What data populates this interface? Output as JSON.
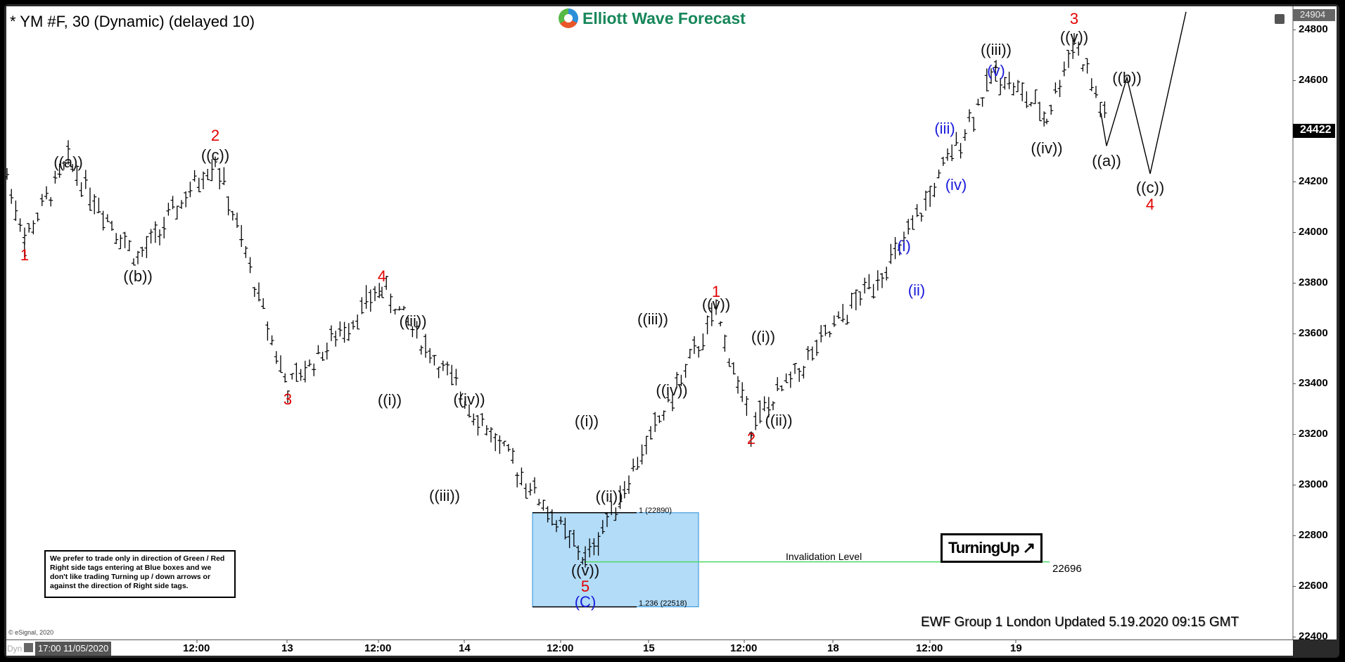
{
  "header": {
    "title": "* YM #F, 30 (Dynamic) (delayed 10)",
    "brand": "Elliott Wave Forecast"
  },
  "price_axis": {
    "high_tag": "24904",
    "last_price_tag": "24422",
    "ticks": [
      "24800",
      "24600",
      "24400",
      "24200",
      "24000",
      "23800",
      "23600",
      "23400",
      "23200",
      "23000",
      "22800",
      "22600",
      "22400"
    ]
  },
  "time_axis": {
    "mode_label": "Dyn",
    "start_label": "17:00 11/05/2020",
    "ticks": [
      "12:00",
      "13",
      "12:00",
      "14",
      "12:00",
      "15",
      "12:00",
      "18",
      "12:00",
      "19"
    ]
  },
  "copyright": "© eSignal, 2020",
  "disclaimer": "We prefer to trade only in direction of Green / Red Right side tags entering at Blue boxes and we don't like trading Turning up / down arrows or against the direction of Right side tags.",
  "blue_box": {
    "upper_label": "1 (22890)",
    "lower_label": "1.236 (22518)"
  },
  "invalidation": {
    "label": "Invalidation Level",
    "value": "22696"
  },
  "turning_badge": "TurningUp ↗",
  "footer": "EWF Group 1 London Updated 5.19.2020 09:15 GMT",
  "chart_data": {
    "type": "ohlc",
    "title": "* YM #F, 30 (Dynamic) (delayed 10)",
    "xlabel": "",
    "ylabel": "Price",
    "ylim": [
      22400,
      24904
    ],
    "grid": false,
    "x_ticks": [
      "12:00 (11/12)",
      "13",
      "12:00",
      "14",
      "12:00",
      "15",
      "12:00",
      "18",
      "12:00",
      "19"
    ],
    "y_ticks": [
      22400,
      22600,
      22800,
      23000,
      23200,
      23400,
      23600,
      23800,
      24000,
      24200,
      24400,
      24600,
      24800
    ],
    "last_price": 24422,
    "session_high_tag": 24904,
    "key_levels": {
      "blue_box_top_fib_1": 22890,
      "blue_box_bottom_fib_1_236": 22518,
      "invalidation_level": 22696
    },
    "wave_labels": [
      {
        "label": "1",
        "color": "red",
        "approx_price": 23970
      },
      {
        "label": "((a))",
        "color": "black",
        "approx_price": 24280
      },
      {
        "label": "((b))",
        "color": "black",
        "approx_price": 23890
      },
      {
        "label": "((c))",
        "color": "black",
        "approx_price": 24290
      },
      {
        "label": "2",
        "color": "red",
        "approx_price": 24290
      },
      {
        "label": "3",
        "color": "red",
        "approx_price": 23380
      },
      {
        "label": "4",
        "color": "red",
        "approx_price": 23780
      },
      {
        "label": "((i))",
        "color": "black",
        "approx_price": 23450
      },
      {
        "label": "((ii))",
        "color": "black",
        "approx_price": 23640
      },
      {
        "label": "((iii))",
        "color": "black",
        "approx_price": 23000
      },
      {
        "label": "((iv))",
        "color": "black",
        "approx_price": 23280
      },
      {
        "label": "((v))",
        "color": "black",
        "approx_price": 22700
      },
      {
        "label": "5",
        "color": "red",
        "approx_price": 22700
      },
      {
        "label": "(C)",
        "color": "blue",
        "approx_price": 22700
      },
      {
        "label": "((i))",
        "color": "black",
        "approx_price": 23220
      },
      {
        "label": "((ii))",
        "color": "black",
        "approx_price": 22990
      },
      {
        "label": "((iii))",
        "color": "black",
        "approx_price": 23650
      },
      {
        "label": "((iv))",
        "color": "black",
        "approx_price": 23430
      },
      {
        "label": "((v))",
        "color": "black",
        "approx_price": 23680
      },
      {
        "label": "1",
        "color": "red",
        "approx_price": 23680
      },
      {
        "label": "2",
        "color": "red",
        "approx_price": 23230
      },
      {
        "label": "((i))",
        "color": "black",
        "approx_price": 23560
      },
      {
        "label": "((ii))",
        "color": "black",
        "approx_price": 23270
      },
      {
        "label": "(i)",
        "color": "blue",
        "approx_price": 23950
      },
      {
        "label": "(ii)",
        "color": "blue",
        "approx_price": 23840
      },
      {
        "label": "(iii)",
        "color": "blue",
        "approx_price": 24410
      },
      {
        "label": "(iv)",
        "color": "blue",
        "approx_price": 24240
      },
      {
        "label": "(v)",
        "color": "blue",
        "approx_price": 24640
      },
      {
        "label": "((iii))",
        "color": "black",
        "approx_price": 24640
      },
      {
        "label": "((iv))",
        "color": "black",
        "approx_price": 24450
      },
      {
        "label": "((v))",
        "color": "black",
        "approx_price": 24760
      },
      {
        "label": "3",
        "color": "red",
        "approx_price": 24760
      },
      {
        "label": "((a))",
        "color": "black",
        "approx_price": 24340
      },
      {
        "label": "((b))",
        "color": "black",
        "approx_price": 24610
      },
      {
        "label": "((c))",
        "color": "black",
        "approx_price": 24230
      },
      {
        "label": "4",
        "color": "red",
        "approx_price": 24230
      }
    ],
    "projection_path": [
      24470,
      24340,
      24610,
      24230,
      24870
    ],
    "swing_path_approx": [
      24220,
      23970,
      24280,
      23890,
      24290,
      23380,
      23780,
      22700,
      23680,
      23230,
      23950,
      24640,
      24450,
      24760,
      24422
    ]
  }
}
